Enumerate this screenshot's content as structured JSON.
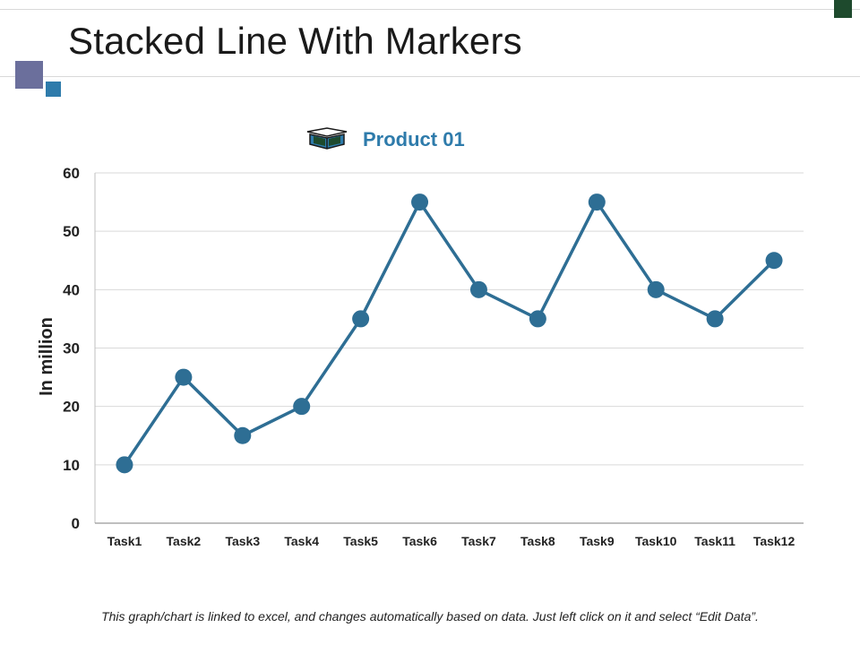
{
  "slide": {
    "title": "Stacked Line With Markers",
    "footnote": "This graph/chart is linked to excel, and changes automatically based on data. Just left click on it and select “Edit Data”."
  },
  "colors": {
    "series": "#2e6e94",
    "legend_text": "#2e7bab",
    "grid": "#d9d9d9",
    "axis_text": "#222222"
  },
  "icons": {
    "legend": "open-box-icon"
  },
  "chart_data": {
    "type": "line",
    "title": "",
    "xlabel": "",
    "ylabel": "In million",
    "ylim": [
      0,
      60
    ],
    "yticks": [
      0,
      10,
      20,
      30,
      40,
      50,
      60
    ],
    "grid": true,
    "legend_position": "top-center",
    "categories": [
      "Task1",
      "Task2",
      "Task3",
      "Task4",
      "Task5",
      "Task6",
      "Task7",
      "Task8",
      "Task9",
      "Task10",
      "Task11",
      "Task12"
    ],
    "series": [
      {
        "name": "Product 01",
        "values": [
          10,
          25,
          15,
          20,
          35,
          55,
          40,
          35,
          55,
          40,
          35,
          45
        ]
      }
    ]
  }
}
